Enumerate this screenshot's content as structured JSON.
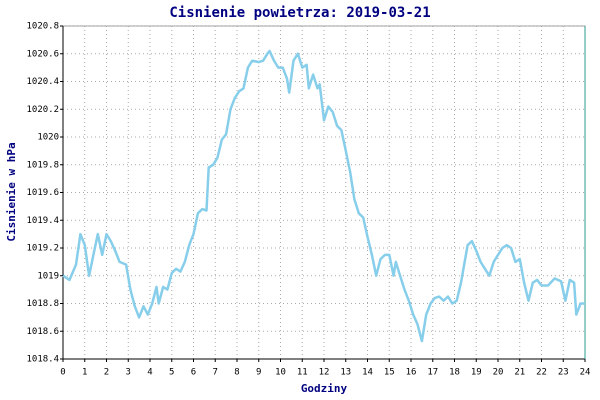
{
  "chart_data": {
    "type": "line",
    "title": "Cisnienie powietrza: 2019-03-21",
    "xlabel": "Godziny",
    "ylabel": "Cisnienie w hPa",
    "color": "#87ceeb",
    "grid": true,
    "xlim": [
      0,
      24
    ],
    "xticks": [
      0,
      1,
      2,
      3,
      4,
      5,
      6,
      7,
      8,
      9,
      10,
      11,
      12,
      13,
      14,
      15,
      16,
      17,
      18,
      19,
      20,
      21,
      22,
      23,
      24
    ],
    "ylim": [
      1018.4,
      1020.8
    ],
    "yticks": [
      1018.4,
      1018.6,
      1018.8,
      1019,
      1019.2,
      1019.4,
      1019.6,
      1019.8,
      1020,
      1020.2,
      1020.4,
      1020.6,
      1020.8
    ],
    "x": [
      0,
      0.3,
      0.6,
      0.8,
      1.0,
      1.2,
      1.4,
      1.6,
      1.8,
      2.0,
      2.2,
      2.4,
      2.6,
      2.9,
      3.1,
      3.3,
      3.5,
      3.7,
      3.9,
      4.1,
      4.3,
      4.4,
      4.6,
      4.8,
      5.0,
      5.2,
      5.4,
      5.6,
      5.8,
      6.0,
      6.2,
      6.4,
      6.6,
      6.7,
      6.9,
      7.1,
      7.3,
      7.5,
      7.7,
      7.9,
      8.1,
      8.3,
      8.5,
      8.7,
      9.0,
      9.2,
      9.4,
      9.5,
      9.7,
      9.9,
      10.1,
      10.3,
      10.4,
      10.6,
      10.8,
      11.0,
      11.2,
      11.3,
      11.5,
      11.7,
      11.8,
      12.0,
      12.2,
      12.4,
      12.6,
      12.8,
      13.0,
      13.2,
      13.4,
      13.6,
      13.8,
      14.0,
      14.2,
      14.4,
      14.6,
      14.8,
      15.0,
      15.2,
      15.3,
      15.5,
      15.7,
      15.9,
      16.1,
      16.3,
      16.5,
      16.7,
      16.9,
      17.1,
      17.3,
      17.5,
      17.7,
      17.9,
      18.1,
      18.3,
      18.6,
      18.8,
      19.0,
      19.2,
      19.4,
      19.6,
      19.8,
      20.0,
      20.2,
      20.4,
      20.6,
      20.8,
      21.0,
      21.2,
      21.4,
      21.6,
      21.8,
      22.0,
      22.3,
      22.6,
      22.9,
      23.1,
      23.3,
      23.5,
      23.6,
      23.8,
      24.0
    ],
    "values": [
      1019.0,
      1018.97,
      1019.08,
      1019.3,
      1019.22,
      1019.0,
      1019.15,
      1019.3,
      1019.15,
      1019.3,
      1019.25,
      1019.18,
      1019.1,
      1019.08,
      1018.9,
      1018.78,
      1018.7,
      1018.78,
      1018.72,
      1018.8,
      1018.92,
      1018.8,
      1018.92,
      1018.9,
      1019.02,
      1019.05,
      1019.03,
      1019.1,
      1019.22,
      1019.3,
      1019.45,
      1019.48,
      1019.47,
      1019.78,
      1019.8,
      1019.85,
      1019.98,
      1020.02,
      1020.2,
      1020.28,
      1020.33,
      1020.35,
      1020.5,
      1020.55,
      1020.54,
      1020.55,
      1020.6,
      1020.62,
      1020.55,
      1020.5,
      1020.5,
      1020.42,
      1020.32,
      1020.55,
      1020.6,
      1020.5,
      1020.52,
      1020.35,
      1020.45,
      1020.35,
      1020.38,
      1020.12,
      1020.22,
      1020.18,
      1020.08,
      1020.05,
      1019.9,
      1019.75,
      1019.55,
      1019.45,
      1019.42,
      1019.28,
      1019.15,
      1019.0,
      1019.12,
      1019.15,
      1019.15,
      1019.0,
      1019.1,
      1019.0,
      1018.9,
      1018.82,
      1018.72,
      1018.65,
      1018.53,
      1018.72,
      1018.8,
      1018.84,
      1018.85,
      1018.82,
      1018.85,
      1018.8,
      1018.82,
      1018.95,
      1019.22,
      1019.25,
      1019.18,
      1019.1,
      1019.05,
      1019.0,
      1019.1,
      1019.15,
      1019.2,
      1019.22,
      1019.2,
      1019.1,
      1019.12,
      1018.95,
      1018.82,
      1018.95,
      1018.97,
      1018.93,
      1018.93,
      1018.98,
      1018.96,
      1018.82,
      1018.97,
      1018.95,
      1018.72,
      1018.8,
      1018.8
    ]
  }
}
